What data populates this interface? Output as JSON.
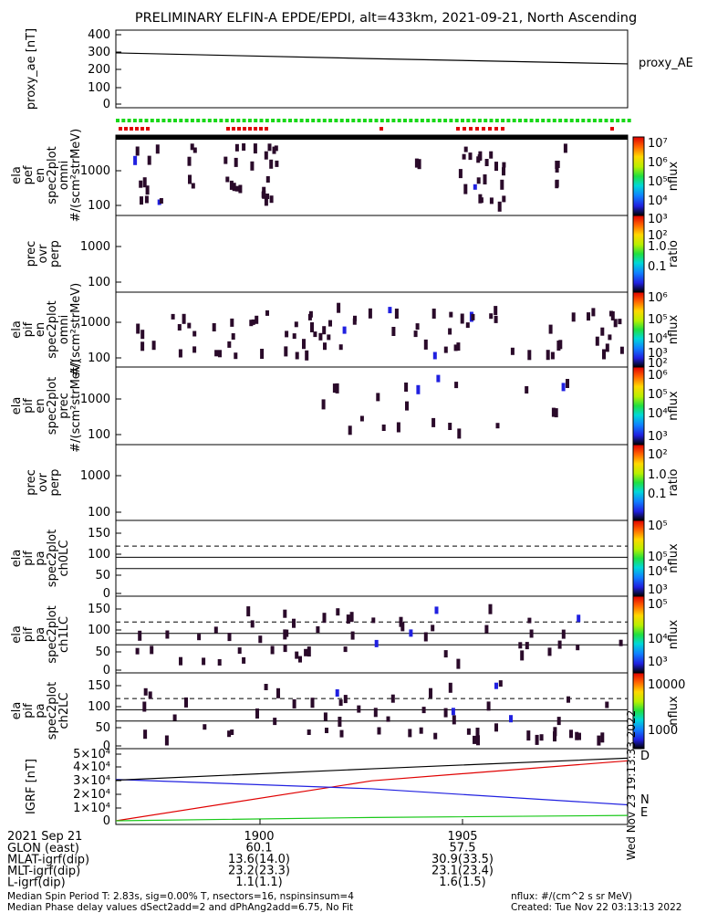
{
  "title": "PRELIMINARY ELFIN-A EPDE/EPDI, alt=433km, 2021-09-21, North Ascending",
  "colors": {
    "flag_green": "#18d818",
    "flag_red": "#e00000",
    "pixel_dark": "#2a0a2a",
    "pixel_blue": "#2020e0",
    "igrf_d": "#e00000",
    "igrf_n": "#2020e0",
    "igrf_e": "#18c818"
  },
  "footer": {
    "date_label": "2021 Sep 21",
    "rows": [
      "GLON (east)",
      "MLAT-igrf(dip)",
      "MLT-igrf(dip)",
      "L-igrf(dip)"
    ],
    "col1": [
      "1900",
      "60.1",
      "13.6(14.0)",
      "23.2(23.3)",
      "1.1(1.1)"
    ],
    "col2": [
      "1905",
      "57.5",
      "30.9(33.5)",
      "23.1(23.4)",
      "1.6(1.5)"
    ],
    "note_left_1": "Median Spin Period T: 2.83s, sig=0.00% T, nsectors=16, nspinsinsum=4",
    "note_left_2": "Median Phase delay values dSect2add=2 and dPhAng2add=6.75, No Fit",
    "note_right_1": "nflux: #/(cm^2 s sr MeV)",
    "note_right_2": "Created: Tue Nov 22 03:13:13 2022",
    "vertical_stamp": "Wed Nov 23 19:13:33 2022"
  },
  "chart_data": [
    {
      "type": "line",
      "ylabel": "proxy_ae [nT]",
      "yticks": [
        "400",
        "300",
        "200",
        "100",
        "0"
      ],
      "ylim": [
        0,
        400
      ],
      "series": [
        {
          "name": "proxy_AE",
          "x": [
            0,
            0.5,
            1
          ],
          "values": [
            295,
            262,
            232
          ]
        }
      ]
    },
    {
      "type": "heatmap",
      "ylabel": [
        "ela",
        "pef",
        "en",
        "spec2plot",
        "omni",
        "#/(scm²strMeV)"
      ],
      "yticks": [
        "1000",
        "100"
      ],
      "colorbar": {
        "label": "nflux",
        "ticks": [
          "10⁷",
          "10⁶",
          "10⁵",
          "10⁴",
          "10³",
          "10²"
        ]
      },
      "flags": true
    },
    {
      "type": "heatmap",
      "ylabel": [
        "prec",
        "ovr",
        "perp"
      ],
      "yticks": [
        "1000",
        "100"
      ],
      "colorbar": {
        "label": "ratio",
        "ticks": [
          "1.0",
          "0.1"
        ]
      }
    },
    {
      "type": "heatmap",
      "ylabel": [
        "ela",
        "pif",
        "en",
        "spec2plot",
        "omni",
        "#/(scm²strMeV)"
      ],
      "yticks": [
        "1000",
        "100"
      ],
      "colorbar": {
        "label": "nflux",
        "ticks": [
          "10⁶",
          "10⁵",
          "10⁴",
          "10³",
          "10²"
        ]
      }
    },
    {
      "type": "heatmap",
      "ylabel": [
        "ela",
        "pif",
        "en",
        "spec2plot",
        "prec",
        "#/(scm²strMeV)"
      ],
      "yticks": [
        "1000",
        "100"
      ],
      "colorbar": {
        "label": "nflux",
        "ticks": [
          "10⁶",
          "10⁵",
          "10⁴",
          "10³",
          "10²"
        ]
      }
    },
    {
      "type": "heatmap",
      "ylabel": [
        "prec",
        "ovr",
        "perp"
      ],
      "yticks": [
        "1000",
        "100"
      ],
      "colorbar": {
        "label": "ratio",
        "ticks": [
          "1.0",
          "0.1"
        ]
      }
    },
    {
      "type": "heatmap",
      "ylabel": [
        "ela",
        "pif",
        "pa",
        "spec2plot",
        "ch0LC"
      ],
      "yticks": [
        "150",
        "100",
        "50",
        "0"
      ],
      "ylim": [
        0,
        180
      ],
      "colorbar": {
        "label": "nflux",
        "ticks": [
          "10⁵",
          "10⁵",
          "10⁴",
          "10³"
        ]
      },
      "lines": {
        "solid": [
          90,
          62
        ],
        "dashed": [
          118
        ]
      }
    },
    {
      "type": "heatmap",
      "ylabel": [
        "ela",
        "pif",
        "pa",
        "spec2plot",
        "ch1LC"
      ],
      "yticks": [
        "150",
        "100",
        "50",
        "0"
      ],
      "ylim": [
        0,
        180
      ],
      "colorbar": {
        "label": "nflux",
        "ticks": [
          "10⁵",
          "10⁴",
          "10³"
        ]
      },
      "lines": {
        "solid": [
          90,
          62
        ],
        "dashed": [
          118
        ]
      }
    },
    {
      "type": "heatmap",
      "ylabel": [
        "ela",
        "pif",
        "pa",
        "spec2plot",
        "ch2LC"
      ],
      "yticks": [
        "150",
        "100",
        "50",
        "0"
      ],
      "ylim": [
        0,
        180
      ],
      "colorbar": {
        "label": "nflux",
        "ticks": [
          "10000",
          "1000"
        ]
      },
      "lines": {
        "solid": [
          90,
          62
        ],
        "dashed": [
          118
        ]
      }
    },
    {
      "type": "line",
      "ylabel": "IGRF [nT]",
      "yticks": [
        "5×10⁴",
        "4×10⁴",
        "3×10⁴",
        "2×10⁴",
        "1×10⁴",
        "0"
      ],
      "ylim": [
        0,
        50000
      ],
      "series": [
        {
          "name": "D",
          "x": [
            0,
            0.5,
            1
          ],
          "values": [
            0,
            30000,
            45000
          ]
        },
        {
          "name": "N",
          "x": [
            0,
            0.5,
            1
          ],
          "values": [
            31000,
            24000,
            12000
          ]
        },
        {
          "name": "E",
          "x": [
            0,
            0.5,
            1
          ],
          "values": [
            0,
            2500,
            4000
          ]
        },
        {
          "x": [
            0,
            0.5,
            1
          ],
          "values": [
            30500,
            39000,
            47000
          ]
        }
      ]
    }
  ]
}
